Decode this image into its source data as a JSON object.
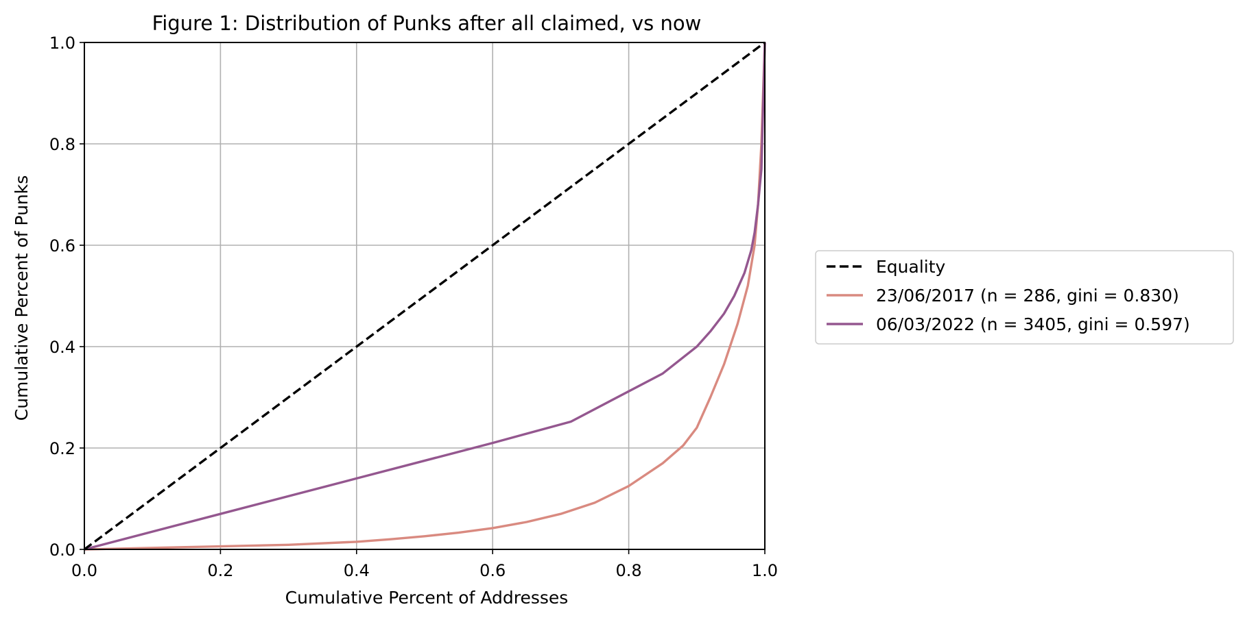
{
  "chart_data": {
    "type": "line",
    "title": "Figure 1: Distribution of Punks after all claimed, vs now",
    "xlabel": "Cumulative Percent of Addresses",
    "ylabel": "Cumulative Percent of Punks",
    "xlim": [
      0.0,
      1.0
    ],
    "ylim": [
      0.0,
      1.0
    ],
    "xticks": [
      "0.0",
      "0.2",
      "0.4",
      "0.6",
      "0.8",
      "1.0"
    ],
    "yticks": [
      "0.0",
      "0.2",
      "0.4",
      "0.6",
      "0.8",
      "1.0"
    ],
    "grid": true,
    "legend_position": "outside-right",
    "series": [
      {
        "name": "Equality",
        "color": "#000000",
        "style": "dashed",
        "x": [
          0.0,
          1.0
        ],
        "y": [
          0.0,
          1.0
        ]
      },
      {
        "name": "23/06/2017 (n = 286, gini = 0.830)",
        "color": "#d98a80",
        "style": "solid",
        "x": [
          0.0,
          0.1,
          0.2,
          0.3,
          0.4,
          0.45,
          0.5,
          0.55,
          0.6,
          0.65,
          0.7,
          0.75,
          0.8,
          0.85,
          0.88,
          0.9,
          0.92,
          0.94,
          0.96,
          0.975,
          0.985,
          0.99,
          0.995,
          1.0
        ],
        "y": [
          0.0,
          0.003,
          0.006,
          0.009,
          0.015,
          0.02,
          0.026,
          0.033,
          0.042,
          0.054,
          0.07,
          0.092,
          0.125,
          0.17,
          0.205,
          0.24,
          0.3,
          0.365,
          0.445,
          0.52,
          0.6,
          0.68,
          0.8,
          1.0
        ]
      },
      {
        "name": "06/03/2022 (n = 3405, gini = 0.597)",
        "color": "#94578f",
        "style": "solid",
        "x": [
          0.0,
          0.2,
          0.4,
          0.6,
          0.715,
          0.85,
          0.9,
          0.92,
          0.94,
          0.955,
          0.97,
          0.98,
          0.985,
          0.99,
          0.995,
          1.0
        ],
        "y": [
          0.0,
          0.07,
          0.14,
          0.21,
          0.252,
          0.347,
          0.4,
          0.43,
          0.465,
          0.5,
          0.545,
          0.59,
          0.625,
          0.68,
          0.75,
          1.0
        ]
      }
    ]
  }
}
